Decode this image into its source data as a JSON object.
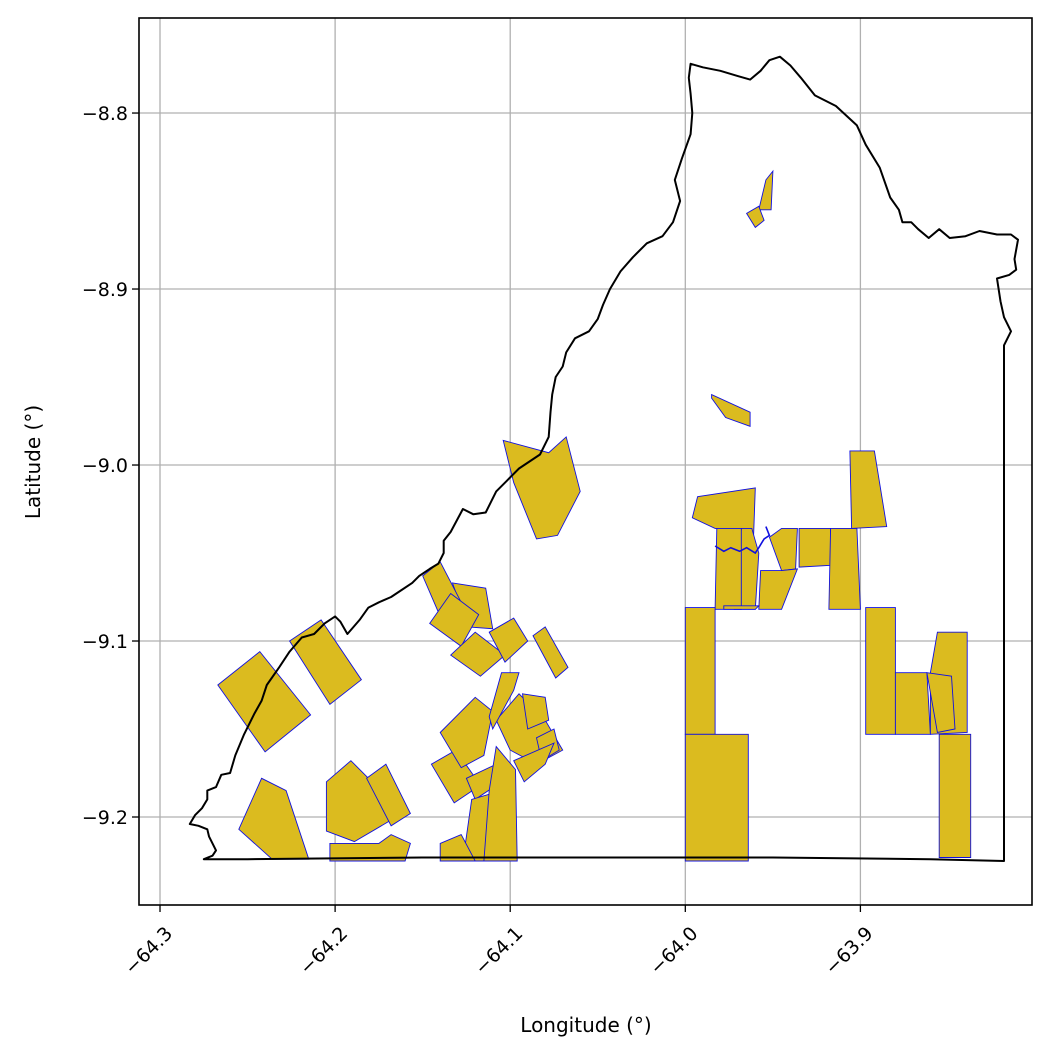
{
  "map": {
    "xlabel": "Longitude (°)",
    "ylabel": "Latitude (°)",
    "xlim": [
      -64.312,
      -63.802
    ],
    "ylim": [
      -9.25,
      -8.746
    ],
    "x_ticks": [
      -64.3,
      -64.2,
      -64.1,
      -64.0,
      -63.9
    ],
    "x_tick_labels": [
      "−64.3",
      "−64.2",
      "−64.1",
      "−64.0",
      "−63.9"
    ],
    "y_ticks": [
      -8.8,
      -8.9,
      -9.0,
      -9.1,
      -9.2
    ],
    "y_tick_labels": [
      "−8.8",
      "−8.9",
      "−9.0",
      "−9.1",
      "−9.2"
    ],
    "grid": true,
    "colors": {
      "parcel_fill": "#dbbb1f",
      "parcel_edge": "#1010e0",
      "boundary": "#000000"
    },
    "boundary": [
      [
        -64.275,
        -9.224
      ],
      [
        -64.27,
        -9.222
      ],
      [
        -64.268,
        -9.219
      ],
      [
        -64.272,
        -9.211
      ],
      [
        -64.273,
        -9.207
      ],
      [
        -64.278,
        -9.205
      ],
      [
        -64.283,
        -9.204
      ],
      [
        -64.28,
        -9.199
      ],
      [
        -64.276,
        -9.195
      ],
      [
        -64.273,
        -9.19
      ],
      [
        -64.273,
        -9.185
      ],
      [
        -64.268,
        -9.183
      ],
      [
        -64.265,
        -9.176
      ],
      [
        -64.26,
        -9.175
      ],
      [
        -64.257,
        -9.165
      ],
      [
        -64.252,
        -9.153
      ],
      [
        -64.246,
        -9.141
      ],
      [
        -64.242,
        -9.134
      ],
      [
        -64.239,
        -9.125
      ],
      [
        -64.232,
        -9.115
      ],
      [
        -64.226,
        -9.106
      ],
      [
        -64.219,
        -9.098
      ],
      [
        -64.212,
        -9.096
      ],
      [
        -64.206,
        -9.09
      ],
      [
        -64.2,
        -9.086
      ],
      [
        -64.197,
        -9.089
      ],
      [
        -64.193,
        -9.096
      ],
      [
        -64.186,
        -9.088
      ],
      [
        -64.181,
        -9.081
      ],
      [
        -64.175,
        -9.078
      ],
      [
        -64.168,
        -9.075
      ],
      [
        -64.162,
        -9.071
      ],
      [
        -64.156,
        -9.067
      ],
      [
        -64.152,
        -9.063
      ],
      [
        -64.146,
        -9.059
      ],
      [
        -64.141,
        -9.056
      ],
      [
        -64.138,
        -9.05
      ],
      [
        -64.138,
        -9.043
      ],
      [
        -64.134,
        -9.038
      ],
      [
        -64.127,
        -9.025
      ],
      [
        -64.121,
        -9.028
      ],
      [
        -64.114,
        -9.027
      ],
      [
        -64.108,
        -9.015
      ],
      [
        -64.102,
        -9.009
      ],
      [
        -64.095,
        -9.002
      ],
      [
        -64.089,
        -8.998
      ],
      [
        -64.083,
        -8.994
      ],
      [
        -64.078,
        -8.984
      ],
      [
        -64.077,
        -8.97
      ],
      [
        -64.076,
        -8.96
      ],
      [
        -64.074,
        -8.95
      ],
      [
        -64.07,
        -8.944
      ],
      [
        -64.068,
        -8.936
      ],
      [
        -64.063,
        -8.928
      ],
      [
        -64.055,
        -8.924
      ],
      [
        -64.05,
        -8.917
      ],
      [
        -64.047,
        -8.909
      ],
      [
        -64.043,
        -8.9
      ],
      [
        -64.037,
        -8.89
      ],
      [
        -64.03,
        -8.882
      ],
      [
        -64.022,
        -8.874
      ],
      [
        -64.013,
        -8.87
      ],
      [
        -64.007,
        -8.862
      ],
      [
        -64.003,
        -8.85
      ],
      [
        -64.006,
        -8.838
      ],
      [
        -64.002,
        -8.826
      ],
      [
        -63.997,
        -8.812
      ],
      [
        -63.996,
        -8.8
      ],
      [
        -63.997,
        -8.789
      ],
      [
        -63.998,
        -8.78
      ],
      [
        -63.997,
        -8.772
      ],
      [
        -63.99,
        -8.774
      ],
      [
        -63.98,
        -8.776
      ],
      [
        -63.97,
        -8.779
      ],
      [
        -63.963,
        -8.781
      ],
      [
        -63.957,
        -8.776
      ],
      [
        -63.952,
        -8.77
      ],
      [
        -63.946,
        -8.768
      ],
      [
        -63.94,
        -8.773
      ],
      [
        -63.934,
        -8.78
      ],
      [
        -63.926,
        -8.79
      ],
      [
        -63.914,
        -8.796
      ],
      [
        -63.902,
        -8.807
      ],
      [
        -63.897,
        -8.818
      ],
      [
        -63.889,
        -8.831
      ],
      [
        -63.883,
        -8.848
      ],
      [
        -63.878,
        -8.855
      ],
      [
        -63.876,
        -8.862
      ],
      [
        -63.871,
        -8.862
      ],
      [
        -63.867,
        -8.866
      ],
      [
        -63.861,
        -8.871
      ],
      [
        -63.855,
        -8.866
      ],
      [
        -63.849,
        -8.871
      ],
      [
        -63.84,
        -8.87
      ],
      [
        -63.832,
        -8.867
      ],
      [
        -63.822,
        -8.869
      ],
      [
        -63.814,
        -8.869
      ],
      [
        -63.81,
        -8.872
      ],
      [
        -63.812,
        -8.883
      ],
      [
        -63.811,
        -8.889
      ],
      [
        -63.815,
        -8.892
      ],
      [
        -63.822,
        -8.894
      ],
      [
        -63.82,
        -8.907
      ],
      [
        -63.818,
        -8.916
      ],
      [
        -63.814,
        -8.924
      ],
      [
        -63.818,
        -8.932
      ],
      [
        -63.818,
        -8.96
      ],
      [
        -63.818,
        -9.01
      ],
      [
        -63.818,
        -9.06
      ],
      [
        -63.818,
        -9.12
      ],
      [
        -63.818,
        -9.18
      ],
      [
        -63.818,
        -9.225
      ],
      [
        -63.86,
        -9.224
      ],
      [
        -63.95,
        -9.223
      ],
      [
        -64.05,
        -9.223
      ],
      [
        -64.15,
        -9.223
      ],
      [
        -64.25,
        -9.224
      ],
      [
        -64.275,
        -9.224
      ]
    ],
    "parcels": [
      [
        [
          -64.267,
          -9.125
        ],
        [
          -64.243,
          -9.106
        ],
        [
          -64.214,
          -9.142
        ],
        [
          -64.24,
          -9.163
        ]
      ],
      [
        [
          -64.226,
          -9.1
        ],
        [
          -64.208,
          -9.088
        ],
        [
          -64.185,
          -9.122
        ],
        [
          -64.203,
          -9.136
        ]
      ],
      [
        [
          -64.255,
          -9.207
        ],
        [
          -64.242,
          -9.178
        ],
        [
          -64.228,
          -9.185
        ],
        [
          -64.215,
          -9.224
        ],
        [
          -64.236,
          -9.224
        ]
      ],
      [
        [
          -64.205,
          -9.18
        ],
        [
          -64.191,
          -9.168
        ],
        [
          -64.175,
          -9.184
        ],
        [
          -64.165,
          -9.2
        ],
        [
          -64.189,
          -9.214
        ],
        [
          -64.205,
          -9.208
        ]
      ],
      [
        [
          -64.182,
          -9.178
        ],
        [
          -64.171,
          -9.17
        ],
        [
          -64.157,
          -9.198
        ],
        [
          -64.168,
          -9.205
        ]
      ],
      [
        [
          -64.203,
          -9.215
        ],
        [
          -64.175,
          -9.215
        ],
        [
          -64.168,
          -9.21
        ],
        [
          -64.157,
          -9.215
        ],
        [
          -64.16,
          -9.225
        ],
        [
          -64.203,
          -9.225
        ]
      ],
      [
        [
          -64.145,
          -9.17
        ],
        [
          -64.131,
          -9.162
        ],
        [
          -64.117,
          -9.182
        ],
        [
          -64.132,
          -9.192
        ]
      ],
      [
        [
          -64.14,
          -9.152
        ],
        [
          -64.12,
          -9.132
        ],
        [
          -64.11,
          -9.14
        ],
        [
          -64.115,
          -9.165
        ],
        [
          -64.128,
          -9.172
        ]
      ],
      [
        [
          -64.125,
          -9.178
        ],
        [
          -64.108,
          -9.17
        ],
        [
          -64.105,
          -9.18
        ],
        [
          -64.12,
          -9.19
        ]
      ],
      [
        [
          -64.122,
          -9.19
        ],
        [
          -64.105,
          -9.185
        ],
        [
          -64.103,
          -9.225
        ],
        [
          -64.127,
          -9.225
        ]
      ],
      [
        [
          -64.14,
          -9.215
        ],
        [
          -64.128,
          -9.21
        ],
        [
          -64.12,
          -9.225
        ],
        [
          -64.14,
          -9.225
        ]
      ],
      [
        [
          -64.108,
          -9.145
        ],
        [
          -64.095,
          -9.13
        ],
        [
          -64.08,
          -9.145
        ],
        [
          -64.07,
          -9.162
        ],
        [
          -64.085,
          -9.17
        ],
        [
          -64.1,
          -9.162
        ]
      ],
      [
        [
          -64.112,
          -9.143
        ],
        [
          -64.105,
          -9.118
        ],
        [
          -64.095,
          -9.118
        ],
        [
          -64.098,
          -9.128
        ],
        [
          -64.11,
          -9.15
        ]
      ],
      [
        [
          -64.093,
          -9.13
        ],
        [
          -64.08,
          -9.132
        ],
        [
          -64.078,
          -9.145
        ],
        [
          -64.09,
          -9.15
        ]
      ],
      [
        [
          -64.085,
          -9.155
        ],
        [
          -64.075,
          -9.15
        ],
        [
          -64.072,
          -9.162
        ],
        [
          -64.082,
          -9.168
        ]
      ],
      [
        [
          -64.108,
          -9.16
        ],
        [
          -64.097,
          -9.173
        ],
        [
          -64.096,
          -9.225
        ],
        [
          -64.115,
          -9.225
        ],
        [
          -64.112,
          -9.185
        ]
      ],
      [
        [
          -64.098,
          -9.168
        ],
        [
          -64.075,
          -9.158
        ],
        [
          -64.08,
          -9.17
        ],
        [
          -64.092,
          -9.18
        ]
      ],
      [
        [
          -64.133,
          -9.067
        ],
        [
          -64.124,
          -9.092
        ],
        [
          -64.11,
          -9.093
        ],
        [
          -64.114,
          -9.07
        ]
      ],
      [
        [
          -64.15,
          -9.063
        ],
        [
          -64.14,
          -9.055
        ],
        [
          -64.128,
          -9.078
        ],
        [
          -64.14,
          -9.086
        ]
      ],
      [
        [
          -64.146,
          -9.09
        ],
        [
          -64.134,
          -9.073
        ],
        [
          -64.118,
          -9.085
        ],
        [
          -64.128,
          -9.103
        ]
      ],
      [
        [
          -64.134,
          -9.108
        ],
        [
          -64.12,
          -9.095
        ],
        [
          -64.103,
          -9.108
        ],
        [
          -64.117,
          -9.12
        ]
      ],
      [
        [
          -64.112,
          -9.095
        ],
        [
          -64.098,
          -9.087
        ],
        [
          -64.09,
          -9.1
        ],
        [
          -64.103,
          -9.112
        ]
      ],
      [
        [
          -64.087,
          -9.097
        ],
        [
          -64.08,
          -9.092
        ],
        [
          -64.067,
          -9.115
        ],
        [
          -64.074,
          -9.121
        ]
      ],
      [
        [
          -64.085,
          -9.042
        ],
        [
          -64.073,
          -9.04
        ],
        [
          -64.06,
          -9.015
        ],
        [
          -64.068,
          -8.984
        ],
        [
          -64.078,
          -8.993
        ],
        [
          -64.104,
          -8.986
        ],
        [
          -64.098,
          -9.01
        ]
      ],
      [
        [
          -63.985,
          -8.962
        ],
        [
          -63.977,
          -8.973
        ],
        [
          -63.963,
          -8.978
        ],
        [
          -63.963,
          -8.97
        ],
        [
          -63.985,
          -8.96
        ]
      ],
      [
        [
          -63.958,
          -8.855
        ],
        [
          -63.951,
          -8.855
        ],
        [
          -63.95,
          -8.833
        ],
        [
          -63.954,
          -8.838
        ]
      ],
      [
        [
          -63.965,
          -8.857
        ],
        [
          -63.958,
          -8.853
        ],
        [
          -63.955,
          -8.861
        ],
        [
          -63.96,
          -8.865
        ]
      ],
      [
        [
          -63.996,
          -9.03
        ],
        [
          -63.993,
          -9.018
        ],
        [
          -63.96,
          -9.013
        ],
        [
          -63.961,
          -9.04
        ],
        [
          -63.983,
          -9.036
        ]
      ],
      [
        [
          -63.968,
          -9.036
        ],
        [
          -63.962,
          -9.036
        ],
        [
          -63.958,
          -9.05
        ],
        [
          -63.96,
          -9.082
        ],
        [
          -63.972,
          -9.082
        ]
      ],
      [
        [
          -63.952,
          -9.041
        ],
        [
          -63.945,
          -9.036
        ],
        [
          -63.936,
          -9.036
        ],
        [
          -63.937,
          -9.059
        ],
        [
          -63.945,
          -9.06
        ]
      ],
      [
        [
          -63.957,
          -9.06
        ],
        [
          -63.945,
          -9.06
        ],
        [
          -63.936,
          -9.059
        ],
        [
          -63.945,
          -9.082
        ],
        [
          -63.958,
          -9.082
        ]
      ],
      [
        [
          -63.935,
          -9.036
        ],
        [
          -63.917,
          -9.036
        ],
        [
          -63.917,
          -9.057
        ],
        [
          -63.935,
          -9.058
        ]
      ],
      [
        [
          -63.917,
          -9.036
        ],
        [
          -63.902,
          -9.036
        ],
        [
          -63.9,
          -9.082
        ],
        [
          -63.918,
          -9.082
        ]
      ],
      [
        [
          -63.906,
          -8.992
        ],
        [
          -63.892,
          -8.992
        ],
        [
          -63.885,
          -9.035
        ],
        [
          -63.905,
          -9.036
        ]
      ],
      [
        [
          -63.968,
          -9.036
        ],
        [
          -63.982,
          -9.036
        ],
        [
          -63.983,
          -9.082
        ],
        [
          -63.968,
          -9.082
        ]
      ],
      [
        [
          -63.978,
          -9.08
        ],
        [
          -63.958,
          -9.08
        ],
        [
          -63.96,
          -9.082
        ],
        [
          -63.978,
          -9.082
        ]
      ],
      [
        [
          -64.0,
          -9.081
        ],
        [
          -63.983,
          -9.081
        ],
        [
          -63.983,
          -9.153
        ],
        [
          -64.0,
          -9.153
        ]
      ],
      [
        [
          -64.0,
          -9.153
        ],
        [
          -63.964,
          -9.153
        ],
        [
          -63.964,
          -9.225
        ],
        [
          -64.0,
          -9.225
        ]
      ],
      [
        [
          -63.897,
          -9.081
        ],
        [
          -63.88,
          -9.081
        ],
        [
          -63.88,
          -9.153
        ],
        [
          -63.897,
          -9.153
        ]
      ],
      [
        [
          -63.88,
          -9.118
        ],
        [
          -63.862,
          -9.118
        ],
        [
          -63.86,
          -9.153
        ],
        [
          -63.88,
          -9.153
        ]
      ],
      [
        [
          -63.856,
          -9.095
        ],
        [
          -63.839,
          -9.095
        ],
        [
          -63.839,
          -9.152
        ],
        [
          -63.86,
          -9.153
        ],
        [
          -63.86,
          -9.118
        ]
      ],
      [
        [
          -63.855,
          -9.153
        ],
        [
          -63.837,
          -9.153
        ],
        [
          -63.837,
          -9.223
        ],
        [
          -63.855,
          -9.223
        ]
      ],
      [
        [
          -63.862,
          -9.118
        ],
        [
          -63.848,
          -9.12
        ],
        [
          -63.846,
          -9.15
        ],
        [
          -63.856,
          -9.152
        ]
      ]
    ],
    "river": [
      [
        -63.983,
        -9.046
      ],
      [
        -63.978,
        -9.049
      ],
      [
        -63.974,
        -9.047
      ],
      [
        -63.969,
        -9.049
      ],
      [
        -63.965,
        -9.047
      ],
      [
        -63.96,
        -9.05
      ],
      [
        -63.958,
        -9.047
      ],
      [
        -63.955,
        -9.042
      ],
      [
        -63.952,
        -9.04
      ],
      [
        -63.954,
        -9.035
      ]
    ]
  }
}
